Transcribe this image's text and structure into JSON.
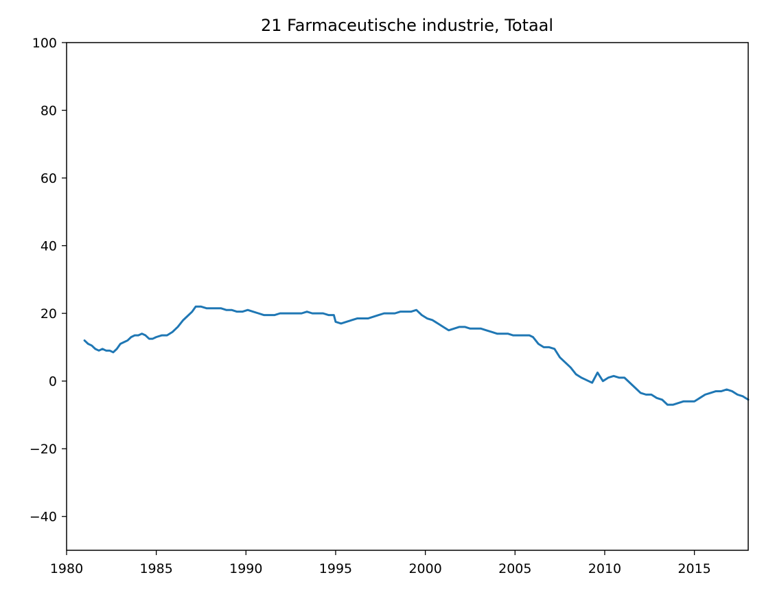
{
  "chart_data": {
    "type": "line",
    "title": "21 Farmaceutische industrie, Totaal",
    "xlabel": "",
    "ylabel": "",
    "xlim": [
      1980,
      2018
    ],
    "ylim": [
      -50,
      100
    ],
    "x_ticks": [
      1980,
      1985,
      1990,
      1995,
      2000,
      2005,
      2010,
      2015
    ],
    "y_ticks": [
      -40,
      -20,
      0,
      20,
      40,
      60,
      80,
      100
    ],
    "x_tick_labels": [
      "1980",
      "1985",
      "1990",
      "1995",
      "2000",
      "2005",
      "2010",
      "2015"
    ],
    "y_tick_labels": [
      "−40",
      "−20",
      "0",
      "20",
      "40",
      "60",
      "80",
      "100"
    ],
    "grid": false,
    "line_color": "#1f77b4",
    "series": [
      {
        "x": [
          1981.0,
          1981.2,
          1981.4,
          1981.6,
          1981.8,
          1982.0,
          1982.2,
          1982.4,
          1982.6,
          1982.8,
          1983.0,
          1983.2,
          1983.4,
          1983.6,
          1983.8,
          1984.0,
          1984.2,
          1984.4,
          1984.6,
          1984.8,
          1985.0,
          1985.3,
          1985.6,
          1985.9,
          1986.2,
          1986.5,
          1986.8,
          1987.0,
          1987.2,
          1987.5,
          1987.8,
          1988.0,
          1988.3,
          1988.6,
          1988.9,
          1989.2,
          1989.5,
          1989.8,
          1990.1,
          1990.4,
          1990.7,
          1991.0,
          1991.3,
          1991.6,
          1991.9,
          1992.2,
          1992.5,
          1992.8,
          1993.1,
          1993.4,
          1993.7,
          1994.0,
          1994.3,
          1994.6,
          1994.9,
          1995.0,
          1995.3,
          1995.6,
          1995.9,
          1996.2,
          1996.5,
          1996.8,
          1997.1,
          1997.4,
          1997.7,
          1998.0,
          1998.3,
          1998.6,
          1998.9,
          1999.2,
          1999.5,
          1999.8,
          2000.1,
          2000.4,
          2000.7,
          2001.0,
          2001.3,
          2001.6,
          2001.9,
          2002.2,
          2002.5,
          2002.8,
          2003.1,
          2003.4,
          2003.7,
          2004.0,
          2004.3,
          2004.6,
          2004.9,
          2005.2,
          2005.5,
          2005.8,
          2006.0,
          2006.3,
          2006.6,
          2006.9,
          2007.2,
          2007.5,
          2007.8,
          2008.1,
          2008.4,
          2008.7,
          2008.9,
          2009.1,
          2009.3,
          2009.6,
          2009.9,
          2010.2,
          2010.5,
          2010.8,
          2011.1,
          2011.4,
          2011.7,
          2012.0,
          2012.3,
          2012.6,
          2012.9,
          2013.2,
          2013.5,
          2013.8,
          2014.1,
          2014.4,
          2014.7,
          2015.0,
          2015.3,
          2015.6,
          2015.9,
          2016.2,
          2016.5,
          2016.8,
          2017.1,
          2017.4,
          2017.7,
          2018.0
        ],
        "y": [
          12.0,
          11.0,
          10.5,
          9.5,
          9.0,
          9.5,
          9.0,
          9.0,
          8.5,
          9.5,
          11.0,
          11.5,
          12.0,
          13.0,
          13.5,
          13.5,
          14.0,
          13.5,
          12.5,
          12.5,
          13.0,
          13.5,
          13.5,
          14.5,
          16.0,
          18.0,
          19.5,
          20.5,
          22.0,
          22.0,
          21.5,
          21.5,
          21.5,
          21.5,
          21.0,
          21.0,
          20.5,
          20.5,
          21.0,
          20.5,
          20.0,
          19.5,
          19.5,
          19.5,
          20.0,
          20.0,
          20.0,
          20.0,
          20.0,
          20.5,
          20.0,
          20.0,
          20.0,
          19.5,
          19.5,
          17.5,
          17.0,
          17.5,
          18.0,
          18.5,
          18.5,
          18.5,
          19.0,
          19.5,
          20.0,
          20.0,
          20.0,
          20.5,
          20.5,
          20.5,
          21.0,
          19.5,
          18.5,
          18.0,
          17.0,
          16.0,
          15.0,
          15.5,
          16.0,
          16.0,
          15.5,
          15.5,
          15.5,
          15.0,
          14.5,
          14.0,
          14.0,
          14.0,
          13.5,
          13.5,
          13.5,
          13.5,
          13.0,
          11.0,
          10.0,
          10.0,
          9.5,
          7.0,
          5.5,
          4.0,
          2.0,
          1.0,
          0.5,
          0.0,
          -0.5,
          2.5,
          0.0,
          1.0,
          1.5,
          1.0,
          1.0,
          -0.5,
          -2.0,
          -3.5,
          -4.0,
          -4.0,
          -5.0,
          -5.5,
          -7.0,
          -7.0,
          -6.5,
          -6.0,
          -6.0,
          -6.0,
          -5.0,
          -4.0,
          -3.5,
          -3.0,
          -3.0,
          -2.5,
          -3.0,
          -4.0,
          -4.5,
          -5.5
        ]
      }
    ]
  }
}
